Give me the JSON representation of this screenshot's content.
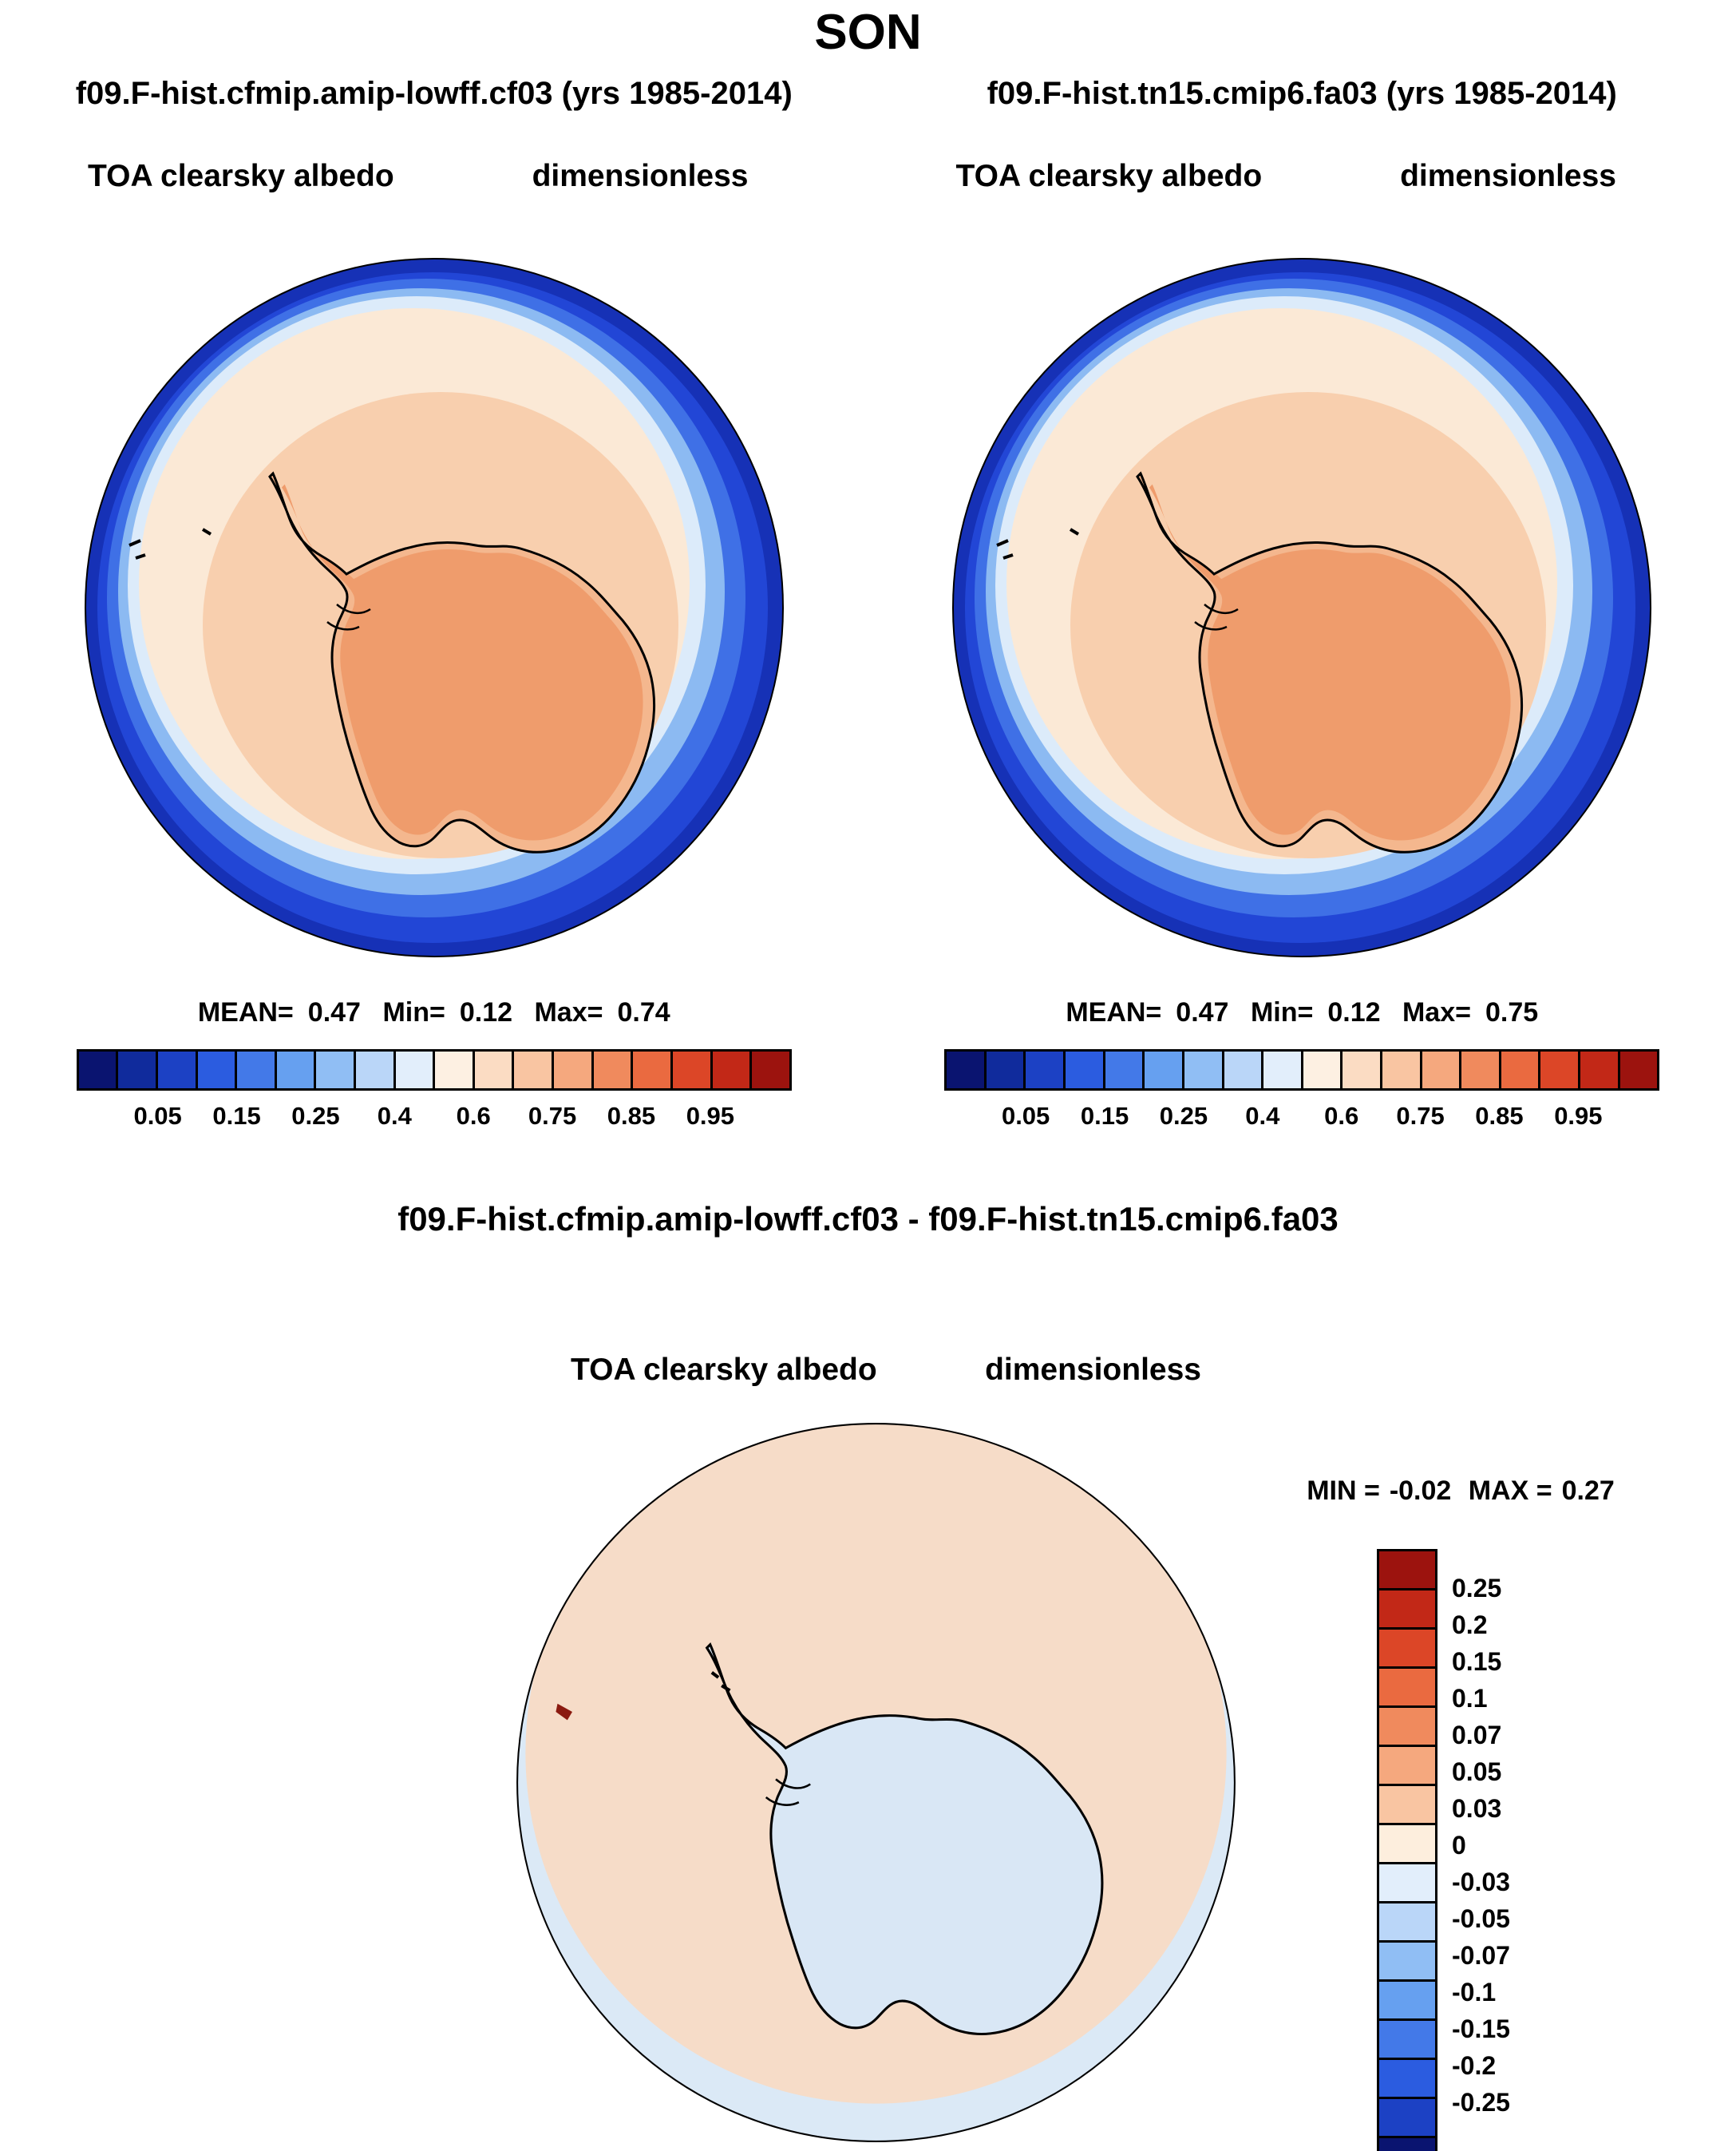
{
  "figure_title": "SON",
  "panels": [
    {
      "run_title": "f09.F-hist.cfmip.amip-lowff.cf03 (yrs 1985-2014)",
      "var_label": "TOA clearsky albedo",
      "units_label": "dimensionless",
      "stats": {
        "mean_label": "MEAN=",
        "mean_value": "0.47",
        "min_label": "Min=",
        "min_value": "0.12",
        "max_label": "Max=",
        "max_value": "0.74"
      }
    },
    {
      "run_title": "f09.F-hist.tn15.cmip6.fa03 (yrs 1985-2014)",
      "var_label": "TOA clearsky albedo",
      "units_label": "dimensionless",
      "stats": {
        "mean_label": "MEAN=",
        "mean_value": "0.47",
        "min_label": "Min=",
        "min_value": "0.12",
        "max_label": "Max=",
        "max_value": "0.75"
      }
    }
  ],
  "albedo_colorbar": {
    "tick_labels": [
      "0.05",
      "0.15",
      "0.25",
      "0.4",
      "0.6",
      "0.75",
      "0.85",
      "0.95"
    ],
    "colors": [
      "#0a1470",
      "#102b9c",
      "#1c41c4",
      "#2b5ce0",
      "#4379e8",
      "#66a0f0",
      "#90bef4",
      "#bad6f8",
      "#e2eefb",
      "#fdf0e2",
      "#fbdcc3",
      "#f9c5a2",
      "#f5a87e",
      "#f08a5d",
      "#ea6a40",
      "#dc4627",
      "#c22817",
      "#9c130e"
    ]
  },
  "diff_panel": {
    "title": "f09.F-hist.cfmip.amip-lowff.cf03 - f09.F-hist.tn15.cmip6.fa03",
    "var_label": "TOA clearsky albedo",
    "units_label": "dimensionless",
    "stats": {
      "min_label": "MIN =",
      "min_value": "-0.02",
      "max_label": "MAX =",
      "max_value": "0.27"
    }
  },
  "diff_colorbar": {
    "labels": [
      "0.25",
      "0.2",
      "0.15",
      "0.1",
      "0.07",
      "0.05",
      "0.03",
      "0",
      "-0.03",
      "-0.05",
      "-0.07",
      "-0.1",
      "-0.15",
      "-0.2",
      "-0.25"
    ],
    "colors": [
      "#9c130e",
      "#c22817",
      "#dc4627",
      "#ea6a40",
      "#f08a5d",
      "#f5a87e",
      "#f9c5a2",
      "#fdeedd",
      "#e2eefb",
      "#bad6f8",
      "#90bef4",
      "#66a0f0",
      "#4379e8",
      "#2b5ce0",
      "#1c41c4",
      "#0a1470"
    ]
  },
  "chart_data": [
    {
      "type": "heatmap",
      "subtype": "south-polar-stereographic-map",
      "season": "SON",
      "title": "f09.F-hist.cfmip.amip-lowff.cf03 (yrs 1985-2014)",
      "variable": "TOA clearsky albedo",
      "units": "dimensionless",
      "stats": {
        "mean": 0.47,
        "min": 0.12,
        "max": 0.74
      },
      "colorbar_ticks": [
        0.05,
        0.15,
        0.25,
        0.4,
        0.6,
        0.75,
        0.85,
        0.95
      ],
      "palette": "blue-to-red diverging, 18 discrete cells",
      "spatial_pattern": "High albedo ~0.6-0.75 (orange) over Antarctic continent interior, ~0.5-0.6 (peach) over coastal ice and sea-ice zone, sharp drop through light blue to ~0.05-0.15 (dark blue) over open Southern Ocean at map edge; sea-ice edge closer to continent on the upper-left (Atlantic) side and farther out on the lower-right (Pacific) side"
    },
    {
      "type": "heatmap",
      "subtype": "south-polar-stereographic-map",
      "season": "SON",
      "title": "f09.F-hist.tn15.cmip6.fa03 (yrs 1985-2014)",
      "variable": "TOA clearsky albedo",
      "units": "dimensionless",
      "stats": {
        "mean": 0.47,
        "min": 0.12,
        "max": 0.75
      },
      "colorbar_ticks": [
        0.05,
        0.15,
        0.25,
        0.4,
        0.6,
        0.75,
        0.85,
        0.95
      ],
      "palette": "blue-to-red diverging, 18 discrete cells",
      "spatial_pattern": "Nearly identical to first panel: orange continent interior, peach sea-ice ring, dark blue open ocean ring"
    },
    {
      "type": "heatmap",
      "subtype": "south-polar-stereographic-map",
      "season": "SON",
      "title": "f09.F-hist.cfmip.amip-lowff.cf03 - f09.F-hist.tn15.cmip6.fa03",
      "variable": "TOA clearsky albedo difference",
      "units": "dimensionless",
      "stats": {
        "min": -0.02,
        "max": 0.27
      },
      "colorbar_levels": [
        0.25,
        0.2,
        0.15,
        0.1,
        0.07,
        0.05,
        0.03,
        0,
        -0.03,
        -0.05,
        -0.07,
        -0.1,
        -0.15,
        -0.2,
        -0.25
      ],
      "palette": "red positive / blue negative, 16 discrete cells, vertical colorbar",
      "spatial_pattern": "Small positive difference 0-0.03 (pale peach) over most of the ocean, small negative difference -0.03-0 (pale blue) over the continent interior and along the southern map edge; isolated dark red speck (~0.27) at far left edge"
    }
  ]
}
